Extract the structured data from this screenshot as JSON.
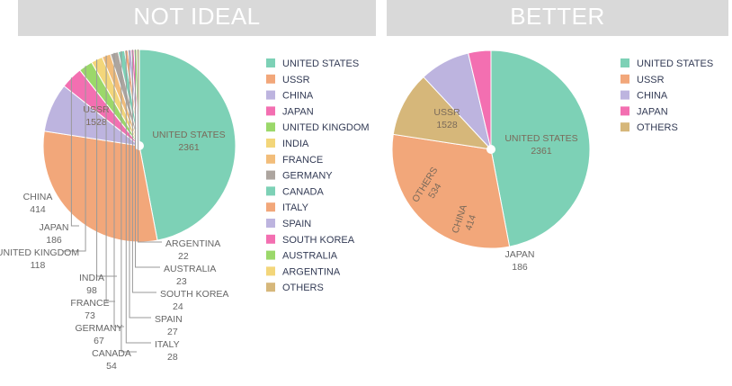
{
  "chart_data": [
    {
      "type": "pie",
      "title": "NOT IDEAL",
      "categories": [
        "UNITED STATES",
        "USSR",
        "CHINA",
        "JAPAN",
        "UNITED KINGDOM",
        "INDIA",
        "FRANCE",
        "GERMANY",
        "CANADA",
        "ITALY",
        "SPAIN",
        "SOUTH KOREA",
        "AUSTRALIA",
        "ARGENTINA",
        "OTHERS"
      ],
      "values": [
        2361,
        1528,
        414,
        186,
        118,
        98,
        73,
        67,
        54,
        28,
        27,
        24,
        23,
        22,
        0
      ],
      "value_labels": [
        "2361",
        "1528",
        "414",
        "186",
        "118",
        "98",
        "73",
        "67",
        "54",
        "28",
        "27",
        "24",
        "23",
        "22",
        ""
      ],
      "legend": [
        "UNITED STATES",
        "USSR",
        "CHINA",
        "JAPAN",
        "UNITED KINGDOM",
        "INDIA",
        "FRANCE",
        "GERMANY",
        "CANADA",
        "ITALY",
        "SPAIN",
        "SOUTH KOREA",
        "AUSTRALIA",
        "ARGENTINA",
        "OTHERS"
      ],
      "colors": [
        "#7dd1b6",
        "#f2a77a",
        "#bdb4df",
        "#f36fb1",
        "#9bd86a",
        "#f3d67a",
        "#f2bd7a",
        "#ada59f",
        "#7dd1b6",
        "#f2a77a",
        "#bdb4df",
        "#f36fb1",
        "#9bd86a",
        "#f3d67a",
        "#d6b77a"
      ],
      "legend_placement": "right"
    },
    {
      "type": "pie",
      "title": "BETTER",
      "categories": [
        "UNITED STATES",
        "USSR",
        "OTHERS",
        "CHINA",
        "JAPAN"
      ],
      "values": [
        2361,
        1528,
        534,
        414,
        186
      ],
      "value_labels": [
        "2361",
        "1528",
        "534",
        "414",
        "186"
      ],
      "legend": [
        "UNITED STATES",
        "USSR",
        "CHINA",
        "JAPAN",
        "OTHERS"
      ],
      "colors": [
        "#7dd1b6",
        "#f2a77a",
        "#d6b77a",
        "#bdb4df",
        "#f36fb1"
      ],
      "legend_colors": [
        "#7dd1b6",
        "#f2a77a",
        "#bdb4df",
        "#f36fb1",
        "#d6b77a"
      ],
      "legend_placement": "right"
    }
  ]
}
